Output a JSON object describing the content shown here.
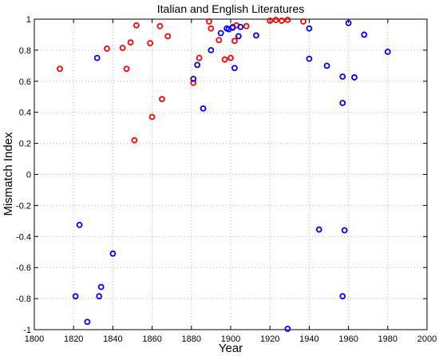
{
  "chart_data": {
    "type": "scatter",
    "title": "Italian and English Literatures",
    "xlabel": "Year",
    "ylabel": "Mismatch Index",
    "xlim": [
      1800,
      2000
    ],
    "ylim": [
      -1,
      1
    ],
    "xticks": [
      1800,
      1820,
      1840,
      1860,
      1880,
      1900,
      1920,
      1940,
      1960,
      1980,
      2000
    ],
    "yticks": [
      -1,
      -0.8,
      -0.6,
      -0.4,
      -0.2,
      0,
      0.2,
      0.4,
      0.6,
      0.8,
      1
    ],
    "ytick_labels": [
      "-1",
      "-0.8",
      "-0.6",
      "-0.4",
      "-0.2",
      "0",
      "0.2",
      "0.4",
      "0.6",
      "0.8",
      "1"
    ],
    "grid": true,
    "marker": "circle",
    "series": [
      {
        "color": "#ff0000",
        "points": [
          [
            1813,
            0.68
          ],
          [
            1837,
            0.81
          ],
          [
            1845,
            0.815
          ],
          [
            1847,
            0.68
          ],
          [
            1849,
            0.85
          ],
          [
            1851,
            0.22
          ],
          [
            1852,
            0.96
          ],
          [
            1859,
            0.845
          ],
          [
            1860,
            0.37
          ],
          [
            1864,
            0.955
          ],
          [
            1865,
            0.485
          ],
          [
            1868,
            0.89
          ],
          [
            1881,
            0.59
          ],
          [
            1884,
            0.75
          ],
          [
            1889,
            0.985
          ],
          [
            1890,
            0.94
          ],
          [
            1894,
            0.865
          ],
          [
            1897,
            0.74
          ],
          [
            1900,
            0.75
          ],
          [
            1901,
            0.95
          ],
          [
            1902,
            0.86
          ],
          [
            1903,
            0.96
          ],
          [
            1908,
            0.955
          ],
          [
            1920,
            0.99
          ],
          [
            1923,
            0.995
          ],
          [
            1926,
            0.99
          ],
          [
            1929,
            0.995
          ],
          [
            1937,
            0.985
          ]
        ]
      },
      {
        "color": "#0000ff",
        "points": [
          [
            1821,
            -0.785
          ],
          [
            1823,
            -0.325
          ],
          [
            1827,
            -0.95
          ],
          [
            1832,
            0.75
          ],
          [
            1833,
            -0.785
          ],
          [
            1834,
            -0.725
          ],
          [
            1840,
            -0.51
          ],
          [
            1881,
            0.615
          ],
          [
            1883,
            0.705
          ],
          [
            1886,
            0.425
          ],
          [
            1890,
            0.8
          ],
          [
            1895,
            0.91
          ],
          [
            1898,
            0.94
          ],
          [
            1899,
            0.935
          ],
          [
            1901,
            0.945
          ],
          [
            1902,
            0.685
          ],
          [
            1904,
            0.89
          ],
          [
            1905,
            0.95
          ],
          [
            1913,
            0.895
          ],
          [
            1929,
            -0.995
          ],
          [
            1940,
            0.94
          ],
          [
            1940,
            0.745
          ],
          [
            1945,
            -0.355
          ],
          [
            1949,
            0.7
          ],
          [
            1957,
            0.63
          ],
          [
            1957,
            0.46
          ],
          [
            1957,
            -0.785
          ],
          [
            1958,
            -0.36
          ],
          [
            1960,
            0.975
          ],
          [
            1963,
            0.625
          ],
          [
            1968,
            0.9
          ],
          [
            1980,
            0.79
          ]
        ]
      }
    ]
  }
}
